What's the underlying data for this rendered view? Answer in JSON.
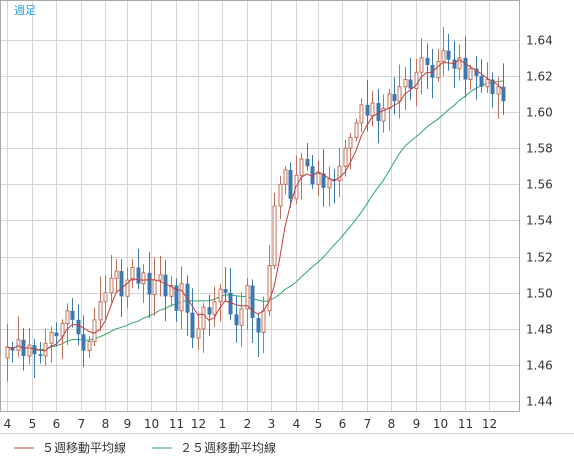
{
  "chart_data": {
    "type": "candlestick",
    "period_label": "週足",
    "y_ticks": [
      1.44,
      1.46,
      1.48,
      1.5,
      1.52,
      1.54,
      1.56,
      1.58,
      1.6,
      1.62,
      1.64
    ],
    "y_tick_labels": [
      "1.44",
      "1.46",
      "1.48",
      "1.50",
      "1.52",
      "1.54",
      "1.56",
      "1.58",
      "1.60",
      "1.62",
      "1.64"
    ],
    "ylim": [
      1.434,
      1.662
    ],
    "x_month_labels": [
      "4",
      "5",
      "6",
      "7",
      "8",
      "9",
      "10",
      "11",
      "12",
      "1",
      "2",
      "3",
      "4",
      "5",
      "6",
      "7",
      "8",
      "9",
      "10",
      "11",
      "12"
    ],
    "x_month_weeks": [
      0,
      4.5,
      9,
      13.5,
      18,
      22,
      26.5,
      31,
      35,
      39.5,
      44,
      48.5,
      53,
      57,
      61.5,
      66,
      70.5,
      75,
      79.5,
      84,
      88.5
    ],
    "x_week_count": 92,
    "colors": {
      "up": "#c0705a",
      "down": "#3d79b0",
      "ma5": "#c23b3b",
      "ma25": "#2ba56b",
      "grid": "#d4d4d4",
      "period_label": "#1a9fd6"
    },
    "legend": [
      {
        "label": "５週移動平均線",
        "color": "#c23b3b"
      },
      {
        "label": "２５週移動平均線",
        "color": "#2ba56b"
      }
    ],
    "closes": [
      1.47,
      1.468,
      1.474,
      1.465,
      1.471,
      1.466,
      1.465,
      1.472,
      1.478,
      1.476,
      1.483,
      1.49,
      1.485,
      1.477,
      1.468,
      1.473,
      1.485,
      1.495,
      1.5,
      1.508,
      1.512,
      1.498,
      1.507,
      1.514,
      1.505,
      1.511,
      1.499,
      1.507,
      1.51,
      1.498,
      1.504,
      1.49,
      1.505,
      1.489,
      1.475,
      1.48,
      1.492,
      1.488,
      1.495,
      1.502,
      1.5,
      1.488,
      1.482,
      1.491,
      1.504,
      1.486,
      1.478,
      1.49,
      1.515,
      1.548,
      1.56,
      1.568,
      1.552,
      1.565,
      1.574,
      1.57,
      1.56,
      1.566,
      1.558,
      1.563,
      1.562,
      1.57,
      1.58,
      1.586,
      1.594,
      1.604,
      1.598,
      1.605,
      1.595,
      1.602,
      1.61,
      1.606,
      1.614,
      1.618,
      1.613,
      1.622,
      1.63,
      1.626,
      1.619,
      1.628,
      1.634,
      1.629,
      1.624,
      1.63,
      1.618,
      1.624,
      1.62,
      1.614,
      1.618,
      1.61,
      1.614,
      1.606
    ]
  }
}
